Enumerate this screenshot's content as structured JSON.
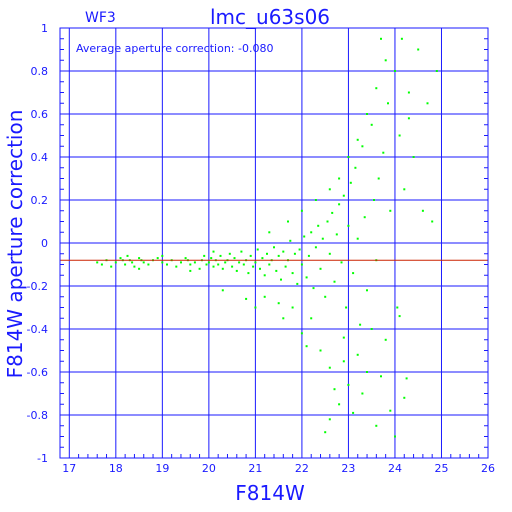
{
  "panel_label": "WF3",
  "annotation": "Average aperture correction: -0.080",
  "chart_data": {
    "type": "scatter",
    "title": "lmc_u63s06",
    "xlabel": "F814W",
    "ylabel": "F814W aperture correction",
    "xlim": [
      16.8,
      26
    ],
    "ylim": [
      -1,
      1
    ],
    "xticks": [
      17,
      18,
      19,
      20,
      21,
      22,
      23,
      24,
      25,
      26
    ],
    "yticks": [
      -1,
      -0.8,
      -0.6,
      -0.4,
      -0.2,
      0,
      0.2,
      0.4,
      0.6,
      0.8,
      1
    ],
    "grid": true,
    "average_line": -0.08,
    "colors": {
      "axes": "#1a1aff",
      "grid": "#1a1aff",
      "points": "#00ff00",
      "average_line": "#cc2200"
    },
    "points": [
      [
        17.6,
        -0.09
      ],
      [
        17.7,
        -0.1
      ],
      [
        17.8,
        -0.08
      ],
      [
        17.9,
        -0.11
      ],
      [
        18.0,
        -0.09
      ],
      [
        18.1,
        -0.07
      ],
      [
        18.15,
        -0.08
      ],
      [
        18.2,
        -0.1
      ],
      [
        18.25,
        -0.06
      ],
      [
        18.3,
        -0.08
      ],
      [
        18.35,
        -0.09
      ],
      [
        18.4,
        -0.11
      ],
      [
        18.5,
        -0.07
      ],
      [
        18.55,
        -0.08
      ],
      [
        18.6,
        -0.09
      ],
      [
        18.7,
        -0.1
      ],
      [
        18.8,
        -0.08
      ],
      [
        18.9,
        -0.07
      ],
      [
        19.0,
        -0.09
      ],
      [
        19.1,
        -0.1
      ],
      [
        19.2,
        -0.08
      ],
      [
        19.3,
        -0.11
      ],
      [
        19.4,
        -0.09
      ],
      [
        19.5,
        -0.07
      ],
      [
        19.55,
        -0.08
      ],
      [
        19.6,
        -0.1
      ],
      [
        19.7,
        -0.09
      ],
      [
        19.8,
        -0.12
      ],
      [
        19.85,
        -0.08
      ],
      [
        19.9,
        -0.06
      ],
      [
        19.95,
        -0.1
      ],
      [
        20.0,
        -0.09
      ],
      [
        20.05,
        -0.07
      ],
      [
        20.1,
        -0.11
      ],
      [
        20.15,
        -0.08
      ],
      [
        20.2,
        -0.1
      ],
      [
        20.25,
        -0.06
      ],
      [
        20.3,
        -0.12
      ],
      [
        20.35,
        -0.09
      ],
      [
        20.4,
        -0.08
      ],
      [
        20.45,
        -0.05
      ],
      [
        20.5,
        -0.11
      ],
      [
        20.55,
        -0.07
      ],
      [
        20.6,
        -0.13
      ],
      [
        20.65,
        -0.09
      ],
      [
        20.7,
        -0.04
      ],
      [
        20.75,
        -0.1
      ],
      [
        20.8,
        -0.08
      ],
      [
        20.85,
        -0.14
      ],
      [
        20.9,
        -0.06
      ],
      [
        20.95,
        -0.11
      ],
      [
        21.0,
        -0.09
      ],
      [
        21.05,
        -0.03
      ],
      [
        21.1,
        -0.12
      ],
      [
        21.15,
        -0.07
      ],
      [
        21.2,
        -0.15
      ],
      [
        21.25,
        -0.05
      ],
      [
        21.3,
        -0.1
      ],
      [
        21.35,
        -0.08
      ],
      [
        21.4,
        -0.02
      ],
      [
        21.45,
        -0.13
      ],
      [
        21.5,
        -0.06
      ],
      [
        21.55,
        -0.17
      ],
      [
        21.6,
        -0.04
      ],
      [
        21.65,
        -0.11
      ],
      [
        21.7,
        -0.08
      ],
      [
        21.75,
        0.01
      ],
      [
        21.8,
        -0.14
      ],
      [
        21.85,
        -0.05
      ],
      [
        21.9,
        -0.19
      ],
      [
        21.95,
        -0.03
      ],
      [
        22.0,
        -0.1
      ],
      [
        22.05,
        0.03
      ],
      [
        22.1,
        -0.16
      ],
      [
        22.15,
        -0.06
      ],
      [
        22.2,
        0.05
      ],
      [
        22.25,
        -0.21
      ],
      [
        22.3,
        -0.02
      ],
      [
        22.35,
        0.08
      ],
      [
        22.4,
        -0.12
      ],
      [
        22.45,
        0.02
      ],
      [
        22.5,
        -0.25
      ],
      [
        22.55,
        0.1
      ],
      [
        22.6,
        -0.05
      ],
      [
        22.65,
        0.14
      ],
      [
        22.7,
        -0.18
      ],
      [
        22.75,
        0.04
      ],
      [
        22.8,
        0.18
      ],
      [
        22.85,
        -0.09
      ],
      [
        22.9,
        0.22
      ],
      [
        22.95,
        -0.3
      ],
      [
        23.0,
        0.08
      ],
      [
        23.05,
        0.28
      ],
      [
        23.1,
        -0.14
      ],
      [
        23.15,
        0.35
      ],
      [
        23.2,
        0.02
      ],
      [
        23.25,
        -0.38
      ],
      [
        23.3,
        0.45
      ],
      [
        23.35,
        0.12
      ],
      [
        23.4,
        -0.22
      ],
      [
        23.5,
        0.55
      ],
      [
        23.55,
        0.2
      ],
      [
        23.6,
        -0.08
      ],
      [
        23.65,
        0.3
      ],
      [
        23.7,
        0.95
      ],
      [
        23.75,
        0.42
      ],
      [
        23.8,
        -0.45
      ],
      [
        23.85,
        0.65
      ],
      [
        23.9,
        0.15
      ],
      [
        24.0,
        0.8
      ],
      [
        24.05,
        -0.3
      ],
      [
        24.1,
        0.5
      ],
      [
        24.15,
        0.95
      ],
      [
        24.2,
        0.25
      ],
      [
        24.25,
        -0.63
      ],
      [
        24.3,
        0.7
      ],
      [
        24.4,
        0.4
      ],
      [
        24.5,
        0.9
      ],
      [
        24.6,
        0.15
      ],
      [
        24.7,
        0.65
      ],
      [
        24.8,
        0.1
      ],
      [
        24.9,
        0.8
      ],
      [
        21.2,
        -0.25
      ],
      [
        21.5,
        -0.28
      ],
      [
        21.8,
        -0.3
      ],
      [
        22.0,
        -0.42
      ],
      [
        22.2,
        -0.35
      ],
      [
        22.4,
        -0.5
      ],
      [
        22.6,
        -0.58
      ],
      [
        22.7,
        -0.68
      ],
      [
        22.8,
        -0.75
      ],
      [
        22.9,
        -0.55
      ],
      [
        23.0,
        -0.66
      ],
      [
        23.1,
        -0.79
      ],
      [
        23.3,
        -0.7
      ],
      [
        23.4,
        -0.6
      ],
      [
        23.6,
        -0.85
      ],
      [
        23.7,
        -0.62
      ],
      [
        23.9,
        -0.78
      ],
      [
        24.0,
        -0.9
      ],
      [
        24.2,
        -0.72
      ],
      [
        22.5,
        -0.88
      ],
      [
        22.6,
        -0.82
      ],
      [
        21.0,
        -0.3
      ],
      [
        20.3,
        -0.22
      ],
      [
        20.8,
        -0.26
      ],
      [
        21.6,
        -0.35
      ],
      [
        22.1,
        -0.48
      ],
      [
        22.9,
        -0.44
      ],
      [
        23.2,
        -0.52
      ],
      [
        23.5,
        -0.4
      ],
      [
        24.1,
        -0.34
      ],
      [
        21.3,
        0.05
      ],
      [
        21.7,
        0.1
      ],
      [
        22.0,
        0.15
      ],
      [
        22.3,
        0.2
      ],
      [
        22.6,
        0.25
      ],
      [
        22.8,
        0.3
      ],
      [
        23.0,
        0.4
      ],
      [
        23.2,
        0.48
      ],
      [
        23.4,
        0.6
      ],
      [
        23.6,
        0.72
      ],
      [
        23.8,
        0.85
      ],
      [
        24.3,
        0.58
      ],
      [
        18.5,
        -0.12
      ],
      [
        19.0,
        -0.06
      ],
      [
        19.6,
        -0.13
      ],
      [
        20.1,
        -0.04
      ]
    ]
  }
}
